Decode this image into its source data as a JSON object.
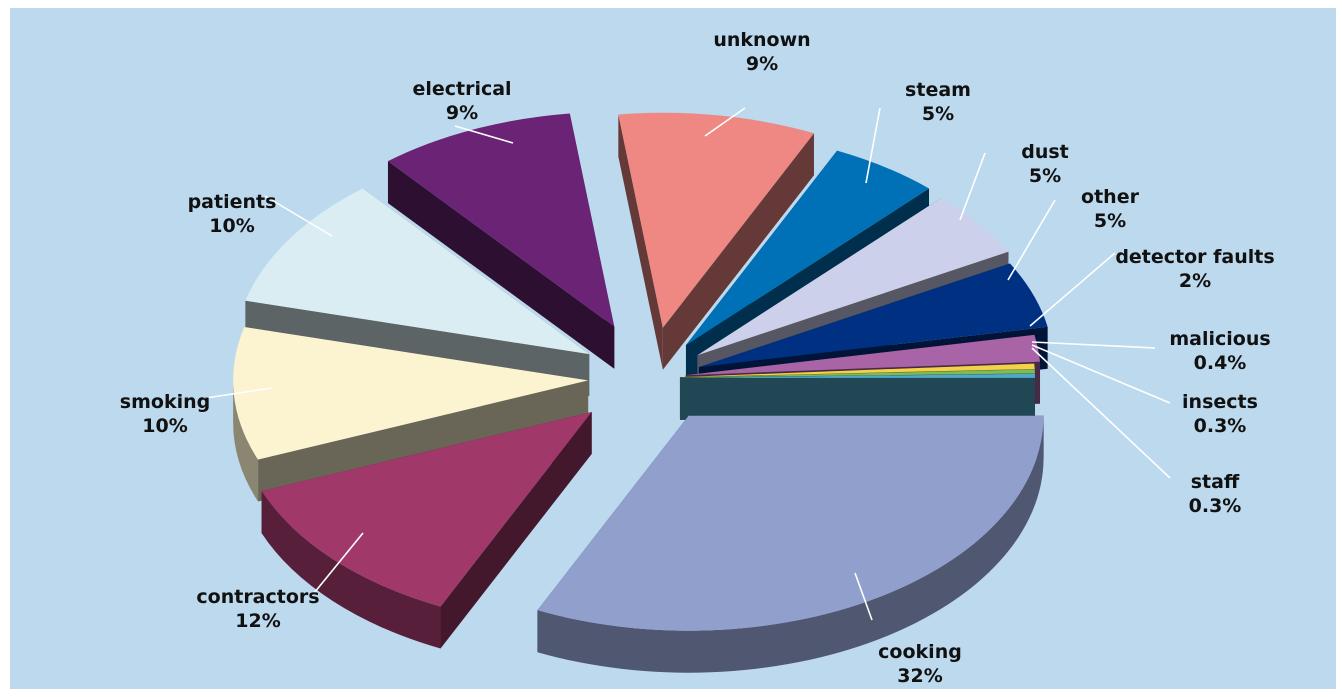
{
  "chart_data": {
    "type": "pie",
    "style": "3d-exploded",
    "slices": [
      {
        "label": "cooking",
        "value": 32,
        "value_label": "32%",
        "color": "#919fcc"
      },
      {
        "label": "contractors",
        "value": 12,
        "value_label": "12%",
        "color": "#a0386a"
      },
      {
        "label": "smoking",
        "value": 10,
        "value_label": "10%",
        "color": "#fcf3d0"
      },
      {
        "label": "patients",
        "value": 10,
        "value_label": "10%",
        "color": "#daedf2"
      },
      {
        "label": "electrical",
        "value": 9,
        "value_label": "9%",
        "color": "#6b2375"
      },
      {
        "label": "unknown",
        "value": 9,
        "value_label": "9%",
        "color": "#ef8882"
      },
      {
        "label": "steam",
        "value": 5,
        "value_label": "5%",
        "color": "#0070b7"
      },
      {
        "label": "dust",
        "value": 5,
        "value_label": "5%",
        "color": "#ccd0ea"
      },
      {
        "label": "other",
        "value": 5,
        "value_label": "5%",
        "color": "#003082"
      },
      {
        "label": "detector faults",
        "value": 2,
        "value_label": "2%",
        "color": "#a864a6"
      },
      {
        "label": "malicious",
        "value": 0.4,
        "value_label": "0.4%",
        "color": "#f3d24a"
      },
      {
        "label": "insects",
        "value": 0.3,
        "value_label": "0.3%",
        "color": "#7dbb5a"
      },
      {
        "label": "staff",
        "value": 0.3,
        "value_label": "0.3%",
        "color": "#4fa8c8"
      }
    ],
    "background_color": "#bcd9ee",
    "legend": "none"
  }
}
